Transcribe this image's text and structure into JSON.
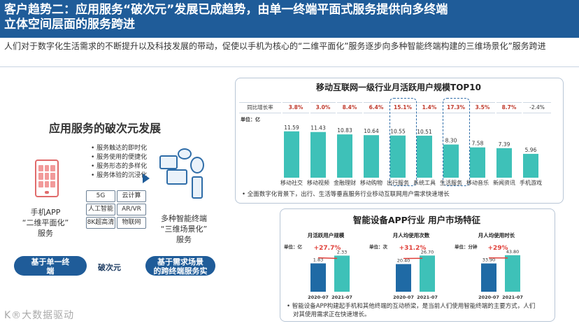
{
  "header": {
    "title_line1": "客户趋势二：应用服务“破次元”发展已成趋势，由单一终端平面式服务提供向多终端",
    "title_line2": "立体空间层面的服务跨进",
    "subtitle": "人们对于数字化生活需求的不断提升以及科技发展的带动，促使以手机为核心的“二维平面化”服务逐步向多种智能终端构建的三维场景化”服务跨进"
  },
  "left": {
    "section_title": "应用服务的破次元发展",
    "phone_label": [
      "手机APP",
      "“二维平面化”",
      "服务"
    ],
    "bullets": [
      "服务触达的即时化",
      "服务使用的便捷化",
      "服务形态的多样化",
      "服务体验的沉浸化"
    ],
    "features": [
      "5G",
      "云计算",
      "人工智能",
      "AR/VR",
      "8K超高清",
      "物联网"
    ],
    "devices_label": [
      "多种智能终端",
      "“三维场景化”",
      "服务"
    ],
    "pill_left": [
      "基于单一终",
      "端"
    ],
    "breakthrough": "破次元",
    "pill_right": [
      "基于需求场景",
      "的跨终端服务实"
    ],
    "watermark": "K®大数据驱动"
  },
  "top_chart": {
    "title": "移动互联网一级行业月活跃用户规模TOP10",
    "growth_label": "同比增长率",
    "growth": [
      "3.8%",
      "3.0%",
      "8.4%",
      "6.4%",
      "15.1%",
      "1.4%",
      "17.3%",
      "3.5%",
      "8.7%",
      "-2.4%"
    ],
    "unit": "单位：亿",
    "note": "• 全面数字化背景下，出行、生活等垂直服务行业移动互联网用户需求快速增长",
    "color": "#3ec1b8"
  },
  "chart_data": [
    {
      "type": "bar",
      "title": "移动互联网一级行业月活跃用户规模TOP10",
      "categories": [
        "移动社交",
        "移动视频",
        "金融理财",
        "移动购物",
        "出行服务",
        "系统工具",
        "生活服务",
        "移动音乐",
        "新闻资讯",
        "手机游戏"
      ],
      "values": [
        11.59,
        11.43,
        10.83,
        10.64,
        10.55,
        10.51,
        8.3,
        7.58,
        7.39,
        5.96
      ],
      "value_labels": [
        "11.59",
        "11.43",
        "10.83",
        "10.64",
        "10.55",
        "10.51",
        "8.30",
        "7.58",
        "7.39",
        "5.96"
      ],
      "ylabel": "单位：亿",
      "ylim": [
        0,
        14
      ]
    },
    {
      "type": "bar",
      "title": "月活跃用户规模",
      "categories": [
        "2020-07",
        "2021-07"
      ],
      "values": [
        1.83,
        2.33
      ],
      "value_labels": [
        "1.83",
        "2.33"
      ],
      "ylabel": "单位：亿",
      "growth": "+27.7%",
      "ylim": [
        0,
        2.8
      ]
    },
    {
      "type": "bar",
      "title": "月人均使用次数",
      "categories": [
        "2020-07",
        "2021-07"
      ],
      "values": [
        20.4,
        26.7
      ],
      "value_labels": [
        "20.40",
        "26.70"
      ],
      "ylabel": "单位：次",
      "growth": "+31.2%",
      "ylim": [
        0,
        32
      ]
    },
    {
      "type": "bar",
      "title": "月人均使用时长",
      "categories": [
        "2020-07",
        "2021-07"
      ],
      "values": [
        33.9,
        43.8
      ],
      "value_labels": [
        "33.90",
        "43.80"
      ],
      "ylabel": "单位：分钟",
      "growth": "+29%",
      "ylim": [
        0,
        52
      ]
    }
  ],
  "bottom_chart": {
    "title": "智能设备APP行业 用户市场特征",
    "note1": "• 智能设备APP构建起手机和其他终端的互动桥梁，是当前人们使用智能终端的主要方式，人们",
    "note2": "对其使用需求正在快速增长。",
    "color_a": "#1f6aa5",
    "color_b": "#3ec1b8",
    "growth_color": "#e0403a"
  }
}
